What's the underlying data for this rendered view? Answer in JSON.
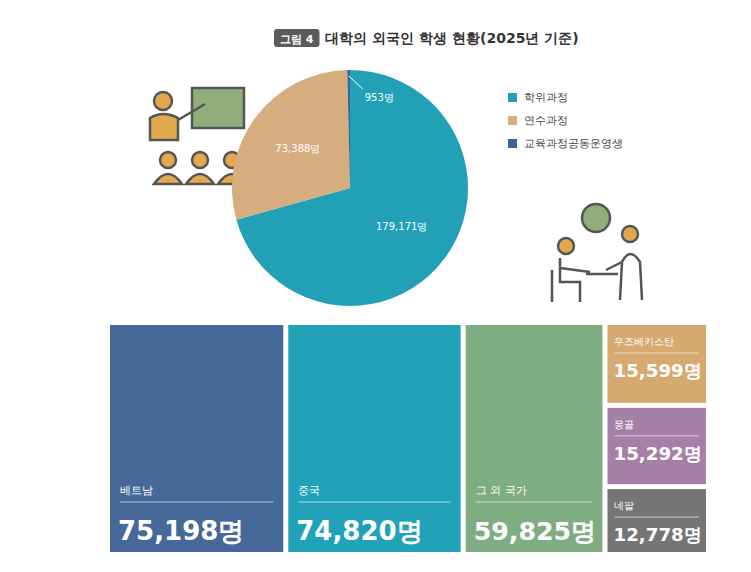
{
  "figure": {
    "label": "그림 4",
    "title": "대학의 외국인 학생 현황(2025년 기준)"
  },
  "chart_data": [
    {
      "type": "pie",
      "categories": [
        "학위과정",
        "연수과정",
        "교육과정공동운영생"
      ],
      "values": [
        179171,
        73388,
        953
      ],
      "value_labels": [
        "179,171명",
        "73,388명",
        "953명"
      ],
      "colors": [
        "#22a1b6",
        "#d5ad7f",
        "#3e6595"
      ],
      "legend": "right",
      "data_labels": true
    },
    {
      "type": "treemap",
      "categories": [
        "베트남",
        "중국",
        "그 외 국가",
        "우즈베키스탄",
        "몽골",
        "네팔"
      ],
      "values": [
        75198,
        74820,
        59825,
        15599,
        15292,
        12778
      ],
      "value_labels": [
        "75,198명",
        "74,820명",
        "59,825명",
        "15,599명",
        "15,292명",
        "12,778명"
      ],
      "colors": [
        "#46699a",
        "#22a2b8",
        "#7fad82",
        "#d5a96f",
        "#a67fa6",
        "#757575"
      ],
      "data_labels": true
    }
  ]
}
